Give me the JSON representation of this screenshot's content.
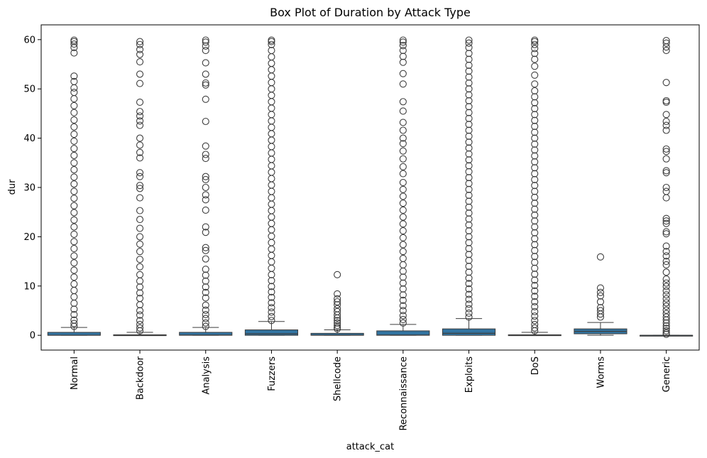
{
  "chart_data": {
    "type": "boxplot",
    "title": "Box Plot of Duration by Attack Type",
    "xlabel": "attack_cat",
    "ylabel": "dur",
    "ylim": [
      -3,
      63
    ],
    "yticks": [
      0,
      10,
      20,
      30,
      40,
      50,
      60
    ],
    "grid": false,
    "legend": "none",
    "colors": {
      "box": "#3274a1",
      "edge": "#3d3d3d"
    },
    "categories": [
      "Normal",
      "Backdoor",
      "Analysis",
      "Fuzzers",
      "Shellcode",
      "Reconnaissance",
      "Exploits",
      "DoS",
      "Worms",
      "Generic"
    ],
    "boxes": [
      {
        "name": "Normal",
        "whisker_low": 0,
        "q1": 0.0,
        "median": 0.02,
        "q3": 0.6,
        "whisker_high": 1.6,
        "outliers": [
          1.8,
          2.4,
          3.1,
          4.2,
          5.3,
          6.5,
          7.8,
          9.1,
          10.4,
          11.8,
          13.2,
          14.7,
          16.1,
          17.6,
          19.0,
          20.5,
          22.0,
          23.4,
          24.9,
          26.3,
          27.8,
          29.2,
          30.7,
          32.1,
          33.6,
          35.0,
          36.5,
          37.9,
          39.4,
          40.8,
          42.3,
          43.7,
          45.2,
          46.6,
          48.0,
          49.3,
          50.2,
          51.5,
          52.6,
          57.3,
          58.4,
          59.1,
          59.6,
          59.9
        ]
      },
      {
        "name": "Backdoor",
        "whisker_low": 0,
        "q1": 0.0,
        "median": 0.0,
        "q3": 0.1,
        "whisker_high": 0.6,
        "outliers": [
          0.9,
          1.5,
          2.2,
          3.0,
          4.1,
          5.0,
          6.2,
          7.5,
          8.6,
          9.8,
          11.0,
          12.3,
          13.9,
          15.4,
          17.0,
          18.5,
          20.0,
          21.7,
          23.5,
          25.3,
          27.9,
          29.8,
          30.4,
          32.2,
          33.0,
          36.0,
          37.1,
          38.6,
          40.0,
          42.6,
          43.5,
          44.5,
          45.4,
          47.3,
          51.1,
          53.0,
          55.5,
          57.0,
          58.0,
          59.0,
          59.6
        ]
      },
      {
        "name": "Analysis",
        "whisker_low": 0,
        "q1": 0.0,
        "median": 0.05,
        "q3": 0.6,
        "whisker_high": 1.6,
        "outliers": [
          1.8,
          2.5,
          3.4,
          4.2,
          5.1,
          6.1,
          7.6,
          8.7,
          9.8,
          11.0,
          12.2,
          13.4,
          15.5,
          17.2,
          17.8,
          20.9,
          22.0,
          25.4,
          27.5,
          28.5,
          30.0,
          31.6,
          32.2,
          35.9,
          36.7,
          38.4,
          43.4,
          47.9,
          50.8,
          51.2,
          53.0,
          55.3,
          57.8,
          58.7,
          59.5,
          59.9
        ]
      },
      {
        "name": "Fuzzers",
        "whisker_low": 0,
        "q1": 0.0,
        "median": 0.3,
        "q3": 1.1,
        "whisker_high": 2.8,
        "outliers": [
          3.0,
          3.8,
          4.7,
          5.6,
          6.6,
          7.7,
          8.8,
          9.9,
          11.1,
          12.3,
          13.6,
          14.9,
          16.2,
          17.5,
          18.8,
          20.1,
          21.4,
          22.7,
          24.0,
          25.3,
          26.6,
          27.9,
          29.2,
          30.5,
          31.8,
          33.1,
          34.4,
          35.7,
          37.0,
          38.3,
          39.6,
          40.9,
          42.2,
          43.5,
          44.8,
          46.1,
          47.4,
          48.7,
          50.0,
          51.3,
          52.6,
          53.9,
          55.2,
          56.5,
          57.8,
          59.0,
          59.6,
          59.9
        ]
      },
      {
        "name": "Shellcode",
        "whisker_low": 0,
        "q1": 0.0,
        "median": 0.05,
        "q3": 0.4,
        "whisker_high": 1.1,
        "outliers": [
          1.3,
          1.6,
          2.0,
          2.5,
          3.0,
          3.5,
          4.1,
          4.8,
          5.4,
          6.2,
          6.8,
          7.4,
          8.4,
          12.3
        ]
      },
      {
        "name": "Reconnaissance",
        "whisker_low": 0,
        "q1": 0.0,
        "median": 0.05,
        "q3": 0.9,
        "whisker_high": 2.2,
        "outliers": [
          2.5,
          3.2,
          4.0,
          5.0,
          6.0,
          7.1,
          8.2,
          9.4,
          10.6,
          11.8,
          13.0,
          14.3,
          15.6,
          17.0,
          18.4,
          19.8,
          21.2,
          22.6,
          24.0,
          25.4,
          26.8,
          28.2,
          29.6,
          31.0,
          32.8,
          34.2,
          35.8,
          37.4,
          38.9,
          40.0,
          41.6,
          43.2,
          45.5,
          47.4,
          51.0,
          53.1,
          55.4,
          56.6,
          57.8,
          58.8,
          59.5,
          59.9
        ]
      },
      {
        "name": "Exploits",
        "whisker_low": 0,
        "q1": 0.0,
        "median": 0.4,
        "q3": 1.3,
        "whisker_high": 3.4,
        "outliers": [
          3.7,
          4.5,
          5.4,
          6.3,
          7.3,
          8.3,
          9.4,
          10.5,
          11.6,
          12.8,
          14.0,
          15.2,
          16.4,
          17.6,
          18.8,
          20.0,
          21.2,
          22.4,
          23.6,
          24.8,
          26.0,
          27.2,
          28.4,
          29.6,
          30.8,
          32.0,
          33.2,
          34.4,
          35.6,
          36.8,
          38.0,
          39.2,
          40.4,
          41.6,
          42.8,
          44.0,
          45.2,
          46.4,
          47.6,
          48.8,
          50.0,
          51.2,
          52.4,
          53.6,
          54.8,
          56.0,
          57.2,
          58.4,
          59.3,
          59.9
        ]
      },
      {
        "name": "DoS",
        "whisker_low": 0,
        "q1": 0.0,
        "median": 0.0,
        "q3": 0.1,
        "whisker_high": 0.6,
        "outliers": [
          0.9,
          1.5,
          2.2,
          3.0,
          3.9,
          4.8,
          5.8,
          6.8,
          7.9,
          9.0,
          10.1,
          11.2,
          12.4,
          13.6,
          14.8,
          16.0,
          17.2,
          18.4,
          19.6,
          20.8,
          22.0,
          23.2,
          24.4,
          25.6,
          26.8,
          28.0,
          29.2,
          30.4,
          31.6,
          32.8,
          34.0,
          35.2,
          36.4,
          37.6,
          38.8,
          40.0,
          41.2,
          42.4,
          43.6,
          44.8,
          46.0,
          47.2,
          48.4,
          49.6,
          51.0,
          52.8,
          54.6,
          56.0,
          57.2,
          58.2,
          59.0,
          59.6,
          59.9
        ]
      },
      {
        "name": "Worms",
        "whisker_low": 0,
        "q1": 0.3,
        "median": 0.8,
        "q3": 1.3,
        "whisker_high": 2.6,
        "outliers": [
          3.7,
          4.3,
          5.0,
          5.6,
          6.8,
          8.0,
          8.7,
          9.6,
          15.9
        ]
      },
      {
        "name": "Generic",
        "whisker_low": 0,
        "q1": 0.0,
        "median": 0.0,
        "q3": 0.0,
        "whisker_high": 0.0,
        "outliers": [
          0.2,
          0.5,
          0.9,
          1.4,
          1.9,
          2.5,
          3.1,
          3.7,
          4.4,
          5.1,
          5.9,
          6.6,
          7.4,
          8.2,
          9.0,
          9.9,
          10.6,
          11.4,
          12.8,
          14.3,
          15.0,
          16.1,
          17.0,
          18.1,
          20.6,
          21.0,
          22.7,
          23.2,
          23.7,
          27.9,
          29.2,
          30.0,
          33.0,
          33.4,
          35.8,
          37.3,
          37.8,
          41.6,
          42.6,
          43.4,
          44.8,
          47.3,
          47.6,
          51.3,
          57.8,
          58.5,
          59.3,
          59.8
        ]
      }
    ]
  }
}
